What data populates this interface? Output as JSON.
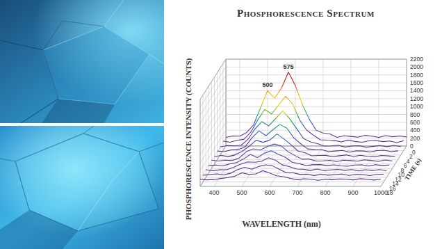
{
  "chart_data": {
    "type": "waterfall",
    "title": "Phosphorescence Spectrum",
    "x_label": "WAVELENGTH (nm)",
    "y_label": "PHOSPHORESCENCE INTENSITY (COUNTS)",
    "z_label": "TIME (s)",
    "x": [
      350,
      375,
      400,
      425,
      450,
      475,
      500,
      525,
      550,
      575,
      600,
      625,
      650,
      675,
      700,
      725,
      750,
      775,
      800,
      825,
      850,
      875,
      900,
      925,
      950,
      975,
      1000
    ],
    "xlim": [
      350,
      1000
    ],
    "xticks": [
      400,
      500,
      600,
      700,
      800,
      900,
      1000
    ],
    "ylim": [
      0,
      2200
    ],
    "yticks": [
      0,
      200,
      400,
      600,
      800,
      1000,
      1200,
      1400,
      1600,
      1800,
      2000,
      2200
    ],
    "zlim": [
      0,
      18
    ],
    "zticks": [
      0,
      2,
      4,
      6,
      8,
      10,
      12,
      14,
      16,
      18
    ],
    "grid": true,
    "series": [
      {
        "time": 0,
        "values": [
          220,
          255,
          250,
          345,
          540,
          975,
          1400,
          1210,
          1465,
          1870,
          1530,
          1055,
          680,
          400,
          330,
          305,
          220,
          260,
          245,
          225,
          270,
          250,
          220,
          265,
          235,
          255,
          230
        ]
      },
      {
        "time": 2,
        "values": [
          240,
          210,
          259,
          283,
          466,
          775,
          1043,
          924,
          1155,
          1372,
          1186,
          781,
          523,
          390,
          273,
          262,
          257,
          220,
          265,
          230,
          210,
          245,
          255,
          225,
          240,
          200,
          250
        ]
      },
      {
        "time": 4,
        "values": [
          205,
          240,
          236,
          244,
          395,
          658,
          843,
          738,
          923,
          1120,
          920,
          670,
          415,
          334,
          289,
          227,
          231,
          250,
          200,
          230,
          235,
          195,
          220,
          240,
          210,
          245,
          215
        ]
      },
      {
        "time": 6,
        "values": [
          215,
          200,
          244,
          254,
          319,
          548,
          725,
          604,
          753,
          888,
          794,
          549,
          397,
          267,
          254,
          253,
          199,
          215,
          230,
          185,
          220,
          215,
          190,
          225,
          235,
          200,
          220
        ]
      },
      {
        "time": 8,
        "values": [
          190,
          215,
          187,
          232,
          322,
          450,
          601,
          548,
          610,
          759,
          632,
          492,
          331,
          286,
          207,
          215,
          218,
          185,
          210,
          230,
          190,
          220,
          195,
          180,
          215,
          205,
          185
        ]
      },
      {
        "time": 10,
        "values": [
          210,
          190,
          211,
          202,
          269,
          425,
          497,
          466,
          555,
          618,
          574,
          424,
          327,
          235,
          242,
          188,
          193,
          205,
          175,
          210,
          200,
          185,
          220,
          200,
          180,
          215,
          190
        ]
      },
      {
        "time": 12,
        "values": [
          185,
          200,
          180,
          228,
          264,
          353,
          470,
          389,
          498,
          563,
          474,
          399,
          272,
          236,
          188,
          207,
          212,
          185,
          205,
          180,
          170,
          200,
          205,
          175,
          210,
          185,
          200
        ]
      },
      {
        "time": 14,
        "values": [
          195,
          170,
          194,
          195,
          257,
          338,
          394,
          386,
          408,
          499,
          437,
          317,
          276,
          214,
          210,
          176,
          212,
          175,
          190,
          205,
          180,
          200,
          165,
          195,
          175,
          200,
          170
        ]
      },
      {
        "time": 16,
        "values": [
          170,
          185,
          203,
          178,
          223,
          315,
          369,
          322,
          390,
          431,
          408,
          318,
          229,
          229,
          188,
          195,
          162,
          195,
          170,
          185,
          200,
          165,
          190,
          185,
          160,
          190,
          195
        ]
      },
      {
        "time": 18,
        "values": [
          180,
          165,
          173,
          200,
          224,
          258,
          345,
          304,
          318,
          398,
          339,
          269,
          247,
          203,
          170,
          194,
          181,
          155,
          185,
          170,
          190,
          185,
          165,
          195,
          180,
          160,
          185
        ]
      }
    ],
    "annotations": [
      {
        "text": "500",
        "x": 500,
        "y": 1400
      },
      {
        "text": "575",
        "x": 575,
        "y": 1870
      }
    ]
  }
}
